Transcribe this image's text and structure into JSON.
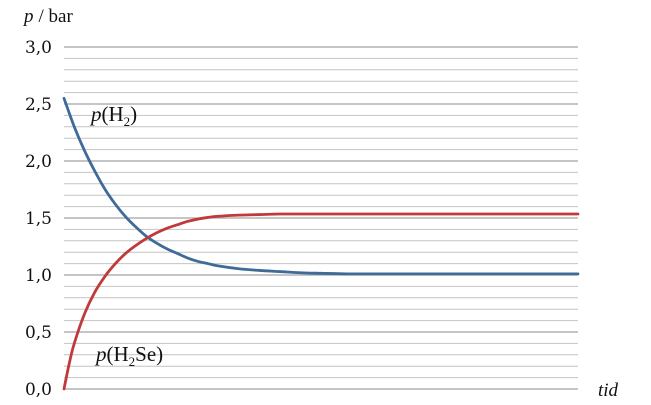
{
  "chart_data": {
    "type": "line",
    "ylabel": {
      "var": "p",
      "unit": "/ bar"
    },
    "xlabel": "tid",
    "ylim": [
      0.0,
      3.0
    ],
    "yticks": [
      {
        "value": 0.0,
        "label": "0,0"
      },
      {
        "value": 0.5,
        "label": "0,5"
      },
      {
        "value": 1.0,
        "label": "1,0"
      },
      {
        "value": 1.5,
        "label": "1,5"
      },
      {
        "value": 2.0,
        "label": "2,0"
      },
      {
        "value": 2.5,
        "label": "2,5"
      },
      {
        "value": 3.0,
        "label": "3,0"
      }
    ],
    "minor_grid_step": 0.1,
    "grid": true,
    "xlim": [
      0,
      100
    ],
    "series": [
      {
        "id": "h2",
        "label": {
          "pre": "p",
          "open": "(H",
          "sub": "2",
          "post": ")"
        },
        "color": "#3e6b98",
        "x": [
          0,
          2,
          4,
          6,
          8,
          10,
          12,
          14,
          16,
          18,
          20,
          22,
          24,
          26,
          28,
          30,
          34,
          38,
          42,
          46,
          50,
          55,
          60,
          70,
          80,
          90,
          100
        ],
        "values": [
          2.55,
          2.3,
          2.09,
          1.91,
          1.75,
          1.62,
          1.51,
          1.42,
          1.34,
          1.28,
          1.23,
          1.19,
          1.15,
          1.12,
          1.1,
          1.08,
          1.055,
          1.04,
          1.03,
          1.02,
          1.015,
          1.01,
          1.01,
          1.01,
          1.01,
          1.01,
          1.01
        ]
      },
      {
        "id": "h2se",
        "label": {
          "pre": "p",
          "open": "(H",
          "sub": "2",
          "post": "Se)"
        },
        "color": "#c0393b",
        "x": [
          0,
          1,
          2,
          4,
          6,
          8,
          10,
          12,
          14,
          16,
          18,
          20,
          22,
          24,
          26,
          28,
          30,
          34,
          38,
          42,
          46,
          50,
          55,
          60,
          70,
          80,
          90,
          100
        ],
        "values": [
          0.0,
          0.22,
          0.4,
          0.66,
          0.85,
          0.99,
          1.1,
          1.19,
          1.26,
          1.32,
          1.37,
          1.41,
          1.44,
          1.47,
          1.49,
          1.505,
          1.515,
          1.525,
          1.53,
          1.535,
          1.535,
          1.535,
          1.535,
          1.535,
          1.535,
          1.535,
          1.535,
          1.535
        ]
      }
    ]
  }
}
